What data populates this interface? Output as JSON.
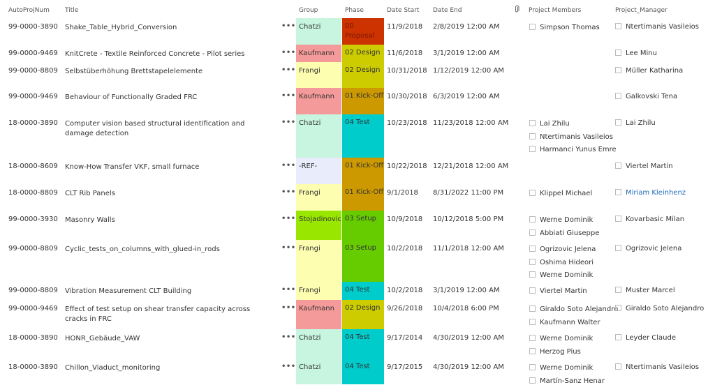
{
  "header": {
    "num": "AutoProjNum",
    "title": "Title",
    "group": "Group",
    "phase": "Phase",
    "start": "Date Start",
    "end": "Date End",
    "attachment_icon": "paperclip-icon",
    "members": "Project Members",
    "manager": "Project_Manager"
  },
  "row_actions_icon": "ellipsis-icon",
  "rows": [
    {
      "num": "99-0000-3890",
      "title": "Shake_Table_Hybrid_Conversion",
      "group": "Chatzi",
      "group_color": "#c7f5e0",
      "phase": "00 Proposal",
      "phase_color": "#cc3300",
      "phase_text_color": "#7a1800",
      "start": "11/9/2018",
      "end": "2/8/2019 12:00 AM",
      "members": [
        "Simpson Thomas"
      ],
      "manager": "Ntertimanis Vasileios"
    },
    {
      "num": "99-0000-9469",
      "title": "KnitCrete - Textile Reinforced Concrete - Pilot series",
      "group": "Kaufmann",
      "group_color": "#f59a9a",
      "phase": "02 Design",
      "phase_color": "#cccc00",
      "phase_text_color": "#333333",
      "start": "11/6/2018",
      "end": "3/1/2019 12:00 AM",
      "members": [],
      "manager": "Lee Minu"
    },
    {
      "num": "99-0000-8809",
      "title": "Selbstüberhöhung Brettstapelelemente",
      "group": "Frangi",
      "group_color": "#fefeb0",
      "phase": "02 Design",
      "phase_color": "#cccc00",
      "phase_text_color": "#333333",
      "start": "10/31/2018",
      "end": "1/12/2019 12:00 AM",
      "members": [],
      "manager": "Müller Katharina"
    },
    {
      "num": "99-0000-9469",
      "title": "Behaviour of Functionally Graded FRC",
      "group": "Kaufmann",
      "group_color": "#f59a9a",
      "phase": "01 Kick-Off",
      "phase_color": "#cc9900",
      "phase_text_color": "#333333",
      "start": "10/30/2018",
      "end": "6/3/2019 12:00 AM",
      "members": [],
      "manager": "Galkovski Tena"
    },
    {
      "num": "18-0000-3890",
      "title": "Computer vision based structural identification and damage detection",
      "group": "Chatzi",
      "group_color": "#c7f5e0",
      "phase": "04 Test",
      "phase_color": "#00cccc",
      "phase_text_color": "#333333",
      "start": "10/23/2018",
      "end": "11/23/2018 12:00 AM",
      "members": [
        "Lai Zhilu",
        "Ntertimanis Vasileios",
        "Harmanci Yunus Emre"
      ],
      "manager": "Lai Zhilu"
    },
    {
      "num": "18-0000-8609",
      "title": "Know-How Transfer VKF, small furnace",
      "group": "-REF-",
      "group_color": "#e8ecfb",
      "phase": "01 Kick-Off",
      "phase_color": "#cc9900",
      "phase_text_color": "#333333",
      "start": "10/22/2018",
      "end": "12/21/2018 12:00 AM",
      "members": [],
      "manager": "Viertel Martin"
    },
    {
      "num": "18-0000-8809",
      "title": "CLT Rib Panels",
      "group": "Frangi",
      "group_color": "#fefeb0",
      "phase": "01 Kick-Off",
      "phase_color": "#cc9900",
      "phase_text_color": "#333333",
      "start": "9/1/2018",
      "end": "8/31/2022 11:00 PM",
      "members": [
        "Klippel Michael"
      ],
      "manager": "Miriam Kleinhenz",
      "manager_link": true
    },
    {
      "num": "99-0000-3930",
      "title": "Masonry Walls",
      "group": "Stojadinovic",
      "group_color": "#99e600",
      "phase": "03 Setup",
      "phase_color": "#66cc00",
      "phase_text_color": "#333333",
      "start": "10/9/2018",
      "end": "10/12/2018 5:00 PM",
      "members": [
        "Werne Dominik",
        "Abbiati Giuseppe"
      ],
      "manager": "Kovarbasic Milan"
    },
    {
      "num": "99-0000-8809",
      "title": "Cyclic_tests_on_columns_with_glued-in_rods",
      "group": "Frangi",
      "group_color": "#fefeb0",
      "phase": "03 Setup",
      "phase_color": "#66cc00",
      "phase_text_color": "#333333",
      "start": "10/2/2018",
      "end": "11/1/2018 12:00 AM",
      "members": [
        "Ogrizovic Jelena",
        "Oshima Hideori",
        "Werne Dominik"
      ],
      "manager": "Ogrizovic Jelena"
    },
    {
      "num": "99-0000-8809",
      "title": "Vibration Measurement CLT Building",
      "group": "Frangi",
      "group_color": "#fefeb0",
      "phase": "04 Test",
      "phase_color": "#00cccc",
      "phase_text_color": "#333333",
      "start": "10/2/2018",
      "end": "3/1/2019 12:00 AM",
      "members": [
        "Viertel Martin"
      ],
      "manager": "Muster Marcel"
    },
    {
      "num": "99-0000-9469",
      "title": "Effect of test setup on shear transfer capacity across cracks in FRC",
      "group": "Kaufmann",
      "group_color": "#f59a9a",
      "phase": "02 Design",
      "phase_color": "#cccc00",
      "phase_text_color": "#333333",
      "start": "9/26/2018",
      "end": "10/4/2018 6:00 PM",
      "members": [
        "Giraldo Soto Alejandro",
        "Kaufmann Walter"
      ],
      "manager": "Giraldo Soto Alejandro"
    },
    {
      "num": "18-0000-3890",
      "title": "HONR_Gebäude_VAW",
      "group": "Chatzi",
      "group_color": "#c7f5e0",
      "phase": "04 Test",
      "phase_color": "#00cccc",
      "phase_text_color": "#333333",
      "start": "9/17/2014",
      "end": "4/30/2019 12:00 AM",
      "members": [
        "Werne Dominik",
        "Herzog Pius"
      ],
      "manager": "Leyder Claude"
    },
    {
      "num": "18-0000-3890",
      "title": "Chillon_Viaduct_monitoring",
      "group": "Chatzi",
      "group_color": "#c7f5e0",
      "phase": "04 Test",
      "phase_color": "#00cccc",
      "phase_text_color": "#333333",
      "start": "9/17/2015",
      "end": "4/30/2019 12:00 AM",
      "members": [
        "Werne Dominik",
        "Martín-Sanz Henar"
      ],
      "manager": "Ntertimanis Vasileios"
    }
  ]
}
